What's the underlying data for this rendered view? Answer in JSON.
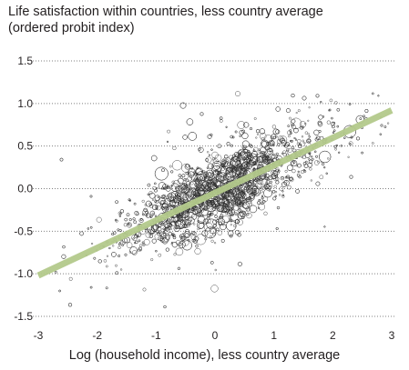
{
  "chart_data": {
    "type": "scatter",
    "title_lines": [
      "Life satisfaction within countries, less country average",
      "(ordered probit index)"
    ],
    "xlabel": "Log (household income), less country average",
    "ylabel": "",
    "xlim": [
      -3,
      3
    ],
    "ylim": [
      -1.5,
      1.5
    ],
    "x_ticks": [
      -3,
      -2,
      -1,
      0,
      1,
      2,
      3
    ],
    "y_ticks": [
      1.5,
      1.0,
      0.5,
      0.0,
      -0.5,
      -1.0,
      -1.5
    ],
    "y_tick_labels": [
      "1.5",
      "1.0",
      "0.5",
      "0.0",
      "-0.5",
      "-1.0",
      "-1.5"
    ],
    "x_tick_labels": [
      "-3",
      "-2",
      "-1",
      "0",
      "1",
      "2",
      "3"
    ],
    "grid": "horizontal-dotted",
    "trend_line": {
      "x": [
        -3,
        3
      ],
      "y": [
        -1.02,
        0.92
      ]
    },
    "point_count_approx": 2500,
    "colors": {
      "points": "#333333",
      "trend": "#b3c98b",
      "grid": "#808080",
      "text": "#231f20"
    }
  }
}
